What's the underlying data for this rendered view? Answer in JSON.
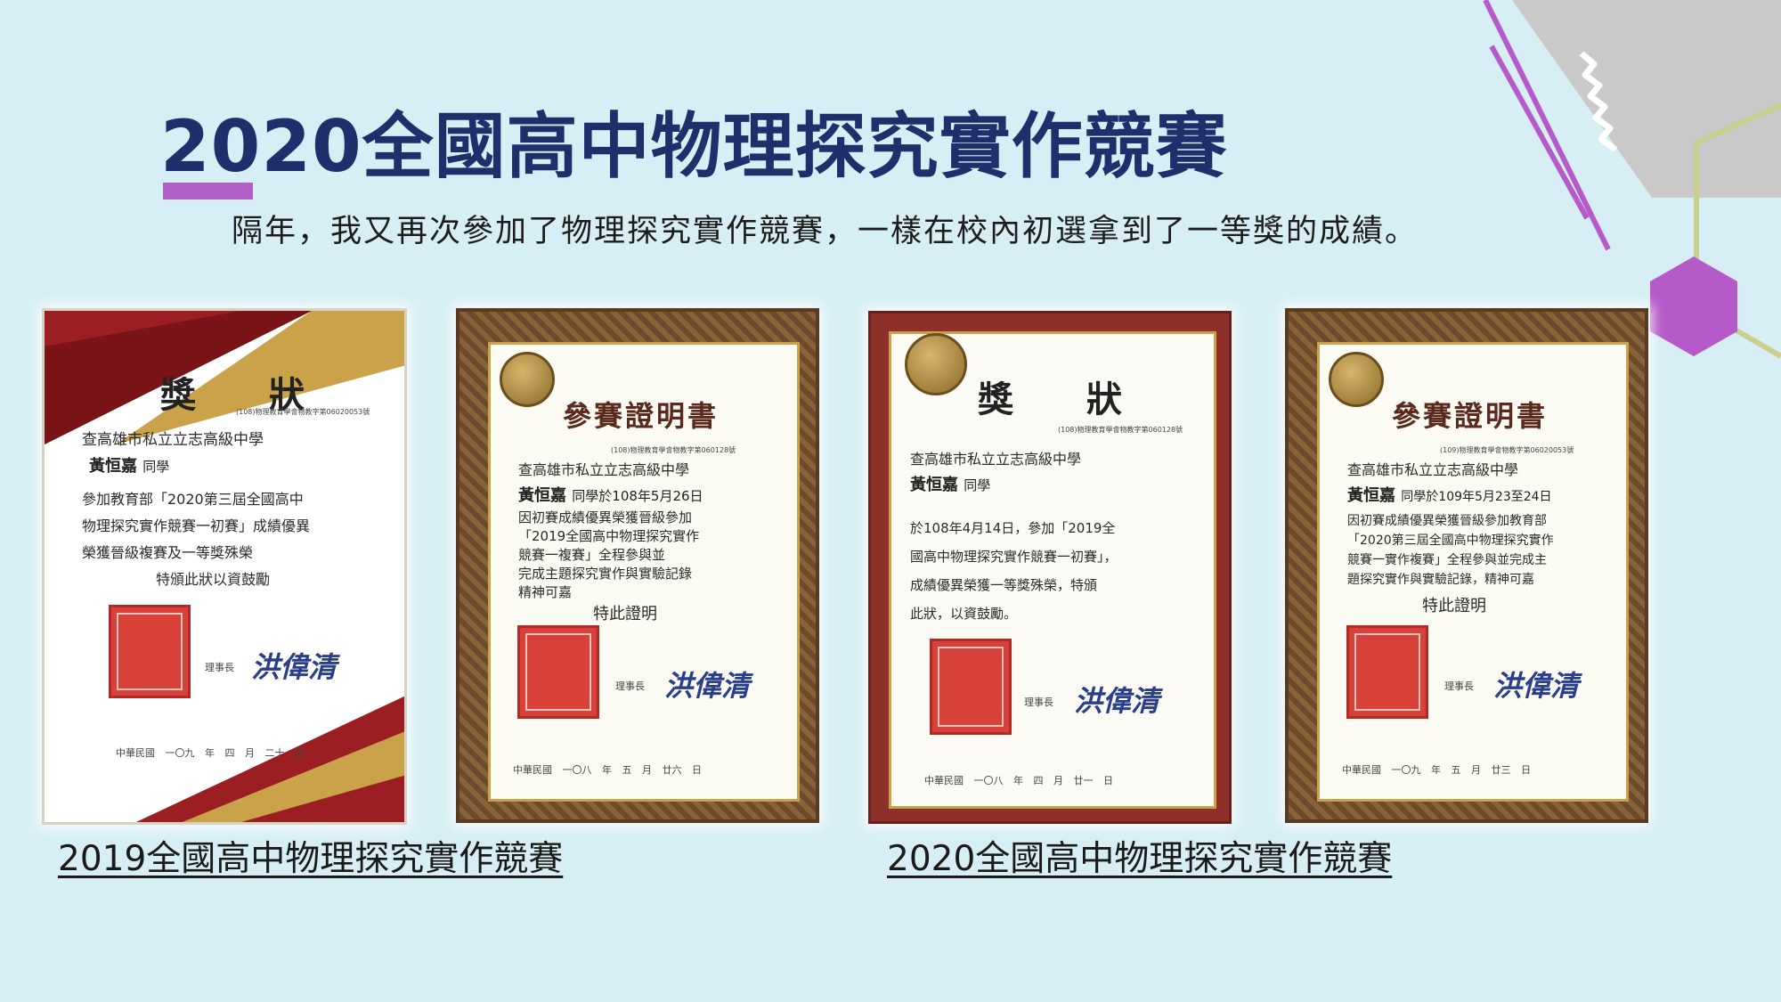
{
  "slide": {
    "title": "2020全國高中物理探究實作競賽",
    "subtitle": "隔年，我又再次參加了物理探究實作競賽，一樣在校內初選拿到了一等獎的成績。",
    "captions": [
      "2019全國高中物理探究實作競賽",
      "2020全國高中物理探究實作競賽"
    ]
  },
  "certificates": [
    {
      "heading": "獎 狀",
      "serial": "(108)物理教育學會物教字第06020053號",
      "school": "查高雄市私立立志高級中學",
      "name": "黃恒嘉",
      "suffix": "同學",
      "lines": [
        "參加教育部「2020第三屆全國高中",
        "物理探究實作競賽一初賽」成績優異",
        "榮獲晉級複賽及一等獎殊榮",
        "特頒此狀以資鼓勵"
      ],
      "title_role": "理事長",
      "signature": "洪偉清",
      "date": "中華民國 一〇九 年 四 月 二十 日"
    },
    {
      "heading": "參賽證明書",
      "serial": "(108)物理教育學會物教字第060128號",
      "school": "查高雄市私立立志高級中學",
      "name": "黃恒嘉",
      "suffix": "同學於108年5月26日",
      "lines": [
        "因初賽成績優異榮獲晉級參加",
        "「2019全國高中物理探究實作",
        "競賽一複賽」全程參與並",
        "完成主題探究實作與實驗記錄",
        "精神可嘉"
      ],
      "closing": "特此證明",
      "title_role": "理事長",
      "signature": "洪偉清",
      "date": "中華民國 一〇八 年 五 月 廿六 日"
    },
    {
      "heading": "獎 狀",
      "serial": "(108)物理教育學會物教字第060128號",
      "school": "查高雄市私立立志高級中學",
      "name": "黃恒嘉",
      "suffix": "同學",
      "lines": [
        "於108年4月14日，參加「2019全",
        "國高中物理探究實作競賽一初賽」，",
        "成績優異榮獲一等獎殊榮，特頒",
        "此狀，以資鼓勵。"
      ],
      "title_role": "理事長",
      "signature": "洪偉清",
      "date": "中華民國 一〇八 年 四 月 廿一 日"
    },
    {
      "heading": "參賽證明書",
      "serial": "(109)物理教育學會物教字第06020053號",
      "school": "查高雄市私立立志高級中學",
      "name": "黃恒嘉",
      "suffix": "同學於109年5月23至24日",
      "lines": [
        "因初賽成績優異榮獲晉級參加教育部",
        "「2020第三屆全國高中物理探究實作",
        "競賽一實作複賽」全程參與並完成主",
        "題探究實作與實驗記錄，精神可嘉"
      ],
      "closing": "特此證明",
      "title_role": "理事長",
      "signature": "洪偉清",
      "date": "中華民國 一〇九 年 五 月 廿三 日"
    }
  ],
  "colors": {
    "background": "#d6eef4",
    "title": "#1f2f6b",
    "accent": "#b05ec8",
    "hexagon": "#b659c9",
    "gray_shape": "#c9c9c9",
    "olive_line": "#c9cf8e"
  }
}
